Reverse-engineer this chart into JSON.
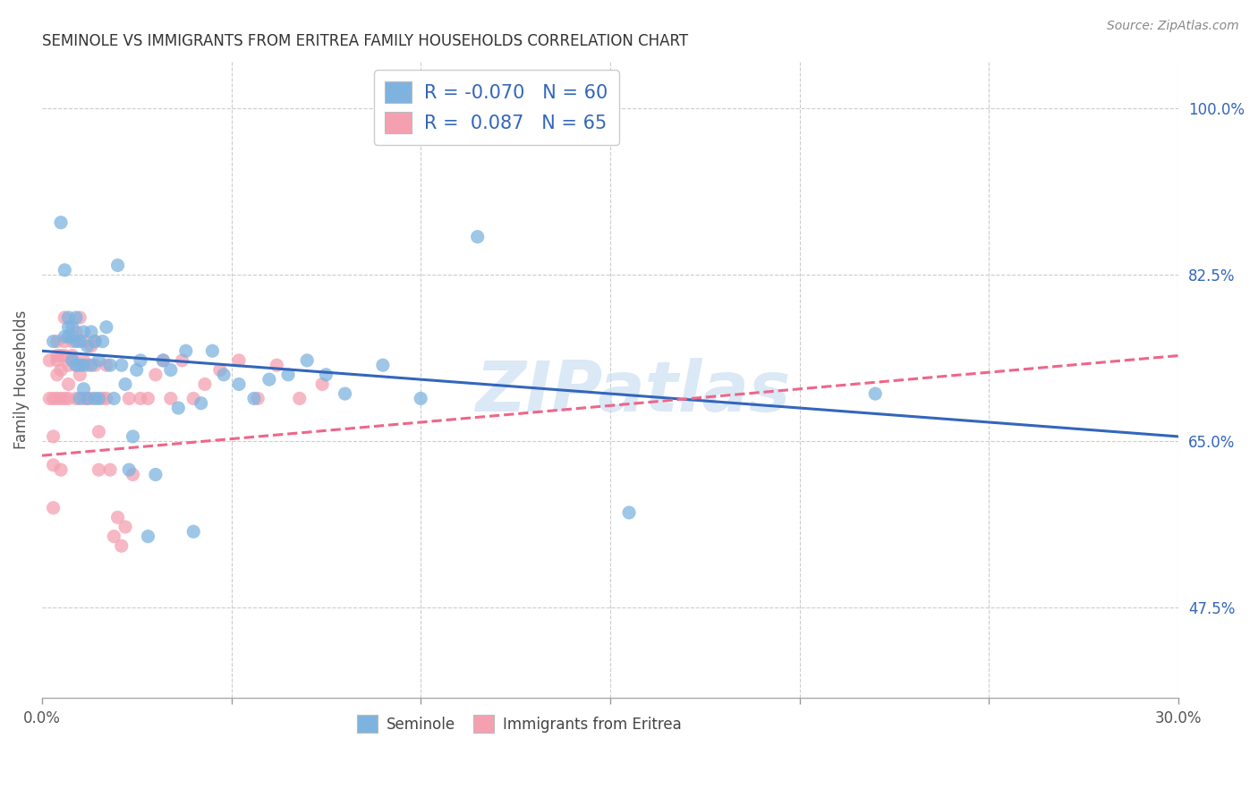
{
  "title": "SEMINOLE VS IMMIGRANTS FROM ERITREA FAMILY HOUSEHOLDS CORRELATION CHART",
  "source": "Source: ZipAtlas.com",
  "ylabel": "Family Households",
  "right_yticks": [
    "100.0%",
    "82.5%",
    "65.0%",
    "47.5%"
  ],
  "right_ytick_vals": [
    1.0,
    0.825,
    0.65,
    0.475
  ],
  "xmin": 0.0,
  "xmax": 0.3,
  "ymin": 0.38,
  "ymax": 1.05,
  "legend_r_blue": "-0.070",
  "legend_n_blue": "60",
  "legend_r_pink": "0.087",
  "legend_n_pink": "65",
  "blue_color": "#7EB3E0",
  "pink_color": "#F4A0B0",
  "line_blue": "#3366BB",
  "line_pink": "#EE6688",
  "watermark": "ZIPatlas",
  "seminole_x": [
    0.003,
    0.005,
    0.006,
    0.006,
    0.007,
    0.007,
    0.007,
    0.008,
    0.008,
    0.008,
    0.009,
    0.009,
    0.009,
    0.01,
    0.01,
    0.01,
    0.011,
    0.011,
    0.011,
    0.012,
    0.012,
    0.013,
    0.013,
    0.014,
    0.014,
    0.015,
    0.015,
    0.016,
    0.017,
    0.018,
    0.019,
    0.02,
    0.021,
    0.022,
    0.023,
    0.024,
    0.025,
    0.026,
    0.028,
    0.03,
    0.032,
    0.034,
    0.036,
    0.038,
    0.04,
    0.042,
    0.045,
    0.048,
    0.052,
    0.056,
    0.06,
    0.065,
    0.07,
    0.075,
    0.08,
    0.09,
    0.1,
    0.115,
    0.155,
    0.22
  ],
  "seminole_y": [
    0.755,
    0.88,
    0.76,
    0.83,
    0.77,
    0.78,
    0.76,
    0.735,
    0.76,
    0.77,
    0.73,
    0.755,
    0.78,
    0.695,
    0.73,
    0.755,
    0.705,
    0.73,
    0.765,
    0.695,
    0.75,
    0.73,
    0.765,
    0.695,
    0.755,
    0.695,
    0.735,
    0.755,
    0.77,
    0.73,
    0.695,
    0.835,
    0.73,
    0.71,
    0.62,
    0.655,
    0.725,
    0.735,
    0.55,
    0.615,
    0.735,
    0.725,
    0.685,
    0.745,
    0.555,
    0.69,
    0.745,
    0.72,
    0.71,
    0.695,
    0.715,
    0.72,
    0.735,
    0.72,
    0.7,
    0.73,
    0.695,
    0.865,
    0.575,
    0.7
  ],
  "eritrea_x": [
    0.002,
    0.002,
    0.003,
    0.003,
    0.003,
    0.003,
    0.004,
    0.004,
    0.004,
    0.004,
    0.004,
    0.005,
    0.005,
    0.005,
    0.005,
    0.006,
    0.006,
    0.006,
    0.006,
    0.007,
    0.007,
    0.007,
    0.008,
    0.008,
    0.008,
    0.009,
    0.009,
    0.009,
    0.01,
    0.01,
    0.011,
    0.011,
    0.011,
    0.012,
    0.012,
    0.013,
    0.013,
    0.014,
    0.014,
    0.015,
    0.015,
    0.016,
    0.017,
    0.017,
    0.018,
    0.019,
    0.02,
    0.021,
    0.022,
    0.023,
    0.024,
    0.026,
    0.028,
    0.03,
    0.032,
    0.034,
    0.037,
    0.04,
    0.043,
    0.047,
    0.052,
    0.057,
    0.062,
    0.068,
    0.074
  ],
  "eritrea_y": [
    0.695,
    0.735,
    0.625,
    0.655,
    0.695,
    0.58,
    0.74,
    0.72,
    0.735,
    0.695,
    0.755,
    0.74,
    0.725,
    0.695,
    0.62,
    0.695,
    0.74,
    0.755,
    0.78,
    0.71,
    0.73,
    0.695,
    0.74,
    0.755,
    0.735,
    0.695,
    0.73,
    0.765,
    0.72,
    0.78,
    0.735,
    0.755,
    0.695,
    0.73,
    0.695,
    0.75,
    0.695,
    0.73,
    0.755,
    0.62,
    0.66,
    0.695,
    0.73,
    0.695,
    0.62,
    0.55,
    0.57,
    0.54,
    0.56,
    0.695,
    0.615,
    0.695,
    0.695,
    0.72,
    0.735,
    0.695,
    0.735,
    0.695,
    0.71,
    0.725,
    0.735,
    0.695,
    0.73,
    0.695,
    0.71
  ],
  "blue_trendline_x": [
    0.0,
    0.3
  ],
  "blue_trendline_y": [
    0.745,
    0.655
  ],
  "pink_trendline_x": [
    0.0,
    0.3
  ],
  "pink_trendline_y": [
    0.635,
    0.74
  ],
  "xtick_positions": [
    0.0,
    0.05,
    0.1,
    0.15,
    0.2,
    0.25,
    0.3
  ],
  "xtick_label_left": "0.0%",
  "xtick_label_right": "30.0%"
}
